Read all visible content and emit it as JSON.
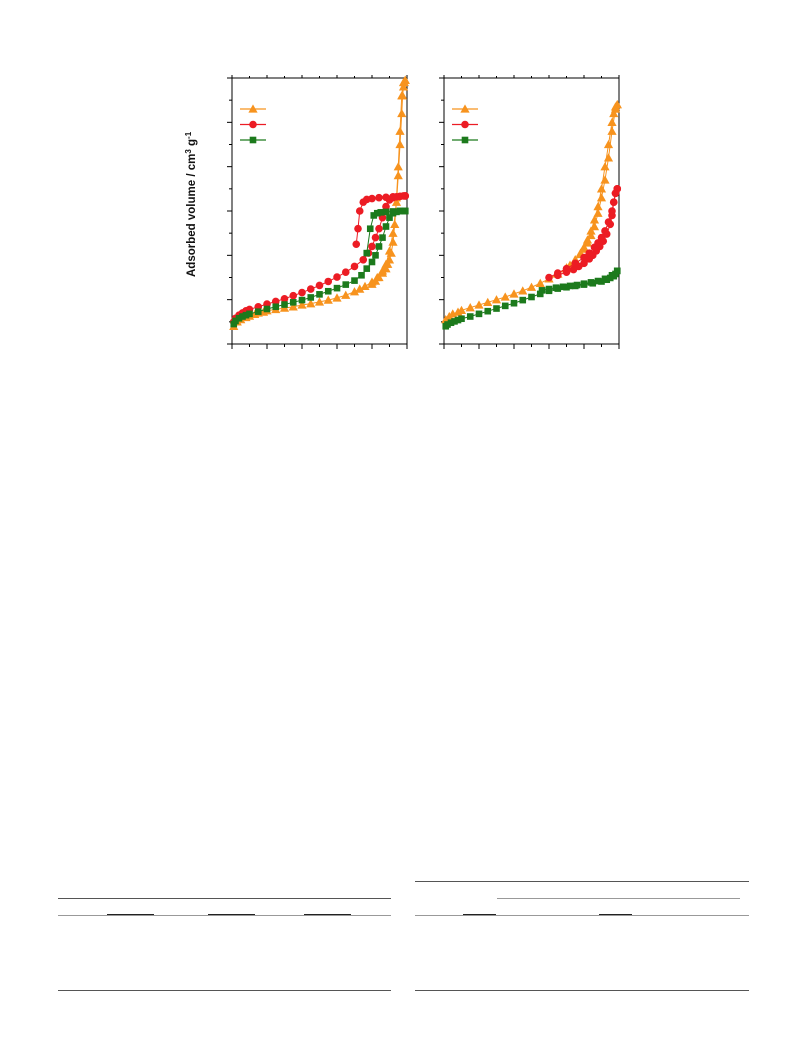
{
  "y_axis_label": "Adsorbed volume / cm",
  "y_axis_label_sup1": "3",
  "y_axis_label_mid": " g",
  "y_axis_label_sup2": "-1",
  "colors": {
    "orange": "#f7931e",
    "red": "#ec1c24",
    "green": "#1c7a1c",
    "axis": "#000000"
  },
  "chart_data": [
    {
      "type": "scatter",
      "title": "",
      "xlabel": "",
      "ylabel": "Adsorbed volume / cm3 g-1",
      "xlim": [
        0,
        1
      ],
      "ylim": [
        0,
        600
      ],
      "x_ticks_major": 5,
      "y_ticks_major": 6,
      "grid": false,
      "legend": "top-left",
      "series": [
        {
          "color": "orange",
          "marker": "triangle",
          "x": [
            0.01,
            0.03,
            0.05,
            0.08,
            0.1,
            0.13,
            0.15,
            0.18,
            0.2,
            0.25,
            0.3,
            0.35,
            0.4,
            0.45,
            0.5,
            0.55,
            0.6,
            0.65,
            0.7,
            0.73,
            0.76,
            0.8,
            0.83,
            0.86,
            0.88,
            0.9,
            0.92,
            0.94,
            0.95,
            0.96,
            0.97,
            0.975,
            0.98,
            0.985,
            0.99
          ],
          "y": [
            40,
            50,
            55,
            60,
            63,
            67,
            70,
            72,
            75,
            78,
            81,
            84,
            88,
            91,
            95,
            99,
            104,
            110,
            118,
            124,
            130,
            140,
            150,
            165,
            180,
            210,
            250,
            320,
            380,
            450,
            520,
            560,
            580,
            590,
            595
          ],
          "desorption": {
            "x": [
              0.99,
              0.98,
              0.97,
              0.96,
              0.95,
              0.94,
              0.93,
              0.92,
              0.91,
              0.9,
              0.89,
              0.88,
              0.86,
              0.84,
              0.82,
              0.8
            ],
            "y": [
              595,
              590,
              560,
              480,
              400,
              330,
              270,
              230,
              205,
              190,
              180,
              170,
              160,
              150,
              142,
              135
            ]
          }
        },
        {
          "color": "red",
          "marker": "circle",
          "x": [
            0.01,
            0.02,
            0.04,
            0.06,
            0.08,
            0.1,
            0.15,
            0.2,
            0.25,
            0.3,
            0.35,
            0.4,
            0.45,
            0.5,
            0.55,
            0.6,
            0.65,
            0.7,
            0.75,
            0.78,
            0.8,
            0.82,
            0.84,
            0.86,
            0.88,
            0.9,
            0.92,
            0.94,
            0.96,
            0.98,
            0.99
          ],
          "y": [
            50,
            58,
            65,
            70,
            75,
            78,
            84,
            90,
            96,
            102,
            109,
            116,
            124,
            132,
            141,
            151,
            162,
            175,
            190,
            205,
            220,
            240,
            260,
            285,
            310,
            325,
            330,
            332,
            333,
            334,
            334
          ],
          "desorption": {
            "x": [
              0.99,
              0.96,
              0.92,
              0.88,
              0.84,
              0.8,
              0.77,
              0.75,
              0.73,
              0.72,
              0.71
            ],
            "y": [
              334,
              333,
              332,
              331,
              330,
              328,
              326,
              320,
              300,
              260,
              225
            ]
          }
        },
        {
          "color": "green",
          "marker": "square",
          "x": [
            0.01,
            0.02,
            0.04,
            0.06,
            0.08,
            0.1,
            0.15,
            0.2,
            0.25,
            0.3,
            0.35,
            0.4,
            0.45,
            0.5,
            0.55,
            0.6,
            0.65,
            0.7,
            0.74,
            0.77,
            0.8,
            0.82,
            0.84,
            0.86,
            0.88,
            0.9,
            0.92,
            0.94,
            0.96,
            0.98,
            0.99
          ],
          "y": [
            45,
            52,
            58,
            62,
            65,
            68,
            73,
            79,
            84,
            89,
            94,
            99,
            105,
            112,
            119,
            126,
            134,
            143,
            155,
            170,
            185,
            200,
            220,
            240,
            265,
            285,
            295,
            298,
            300,
            300,
            300
          ],
          "desorption": {
            "x": [
              0.99,
              0.96,
              0.92,
              0.88,
              0.85,
              0.83,
              0.81,
              0.79,
              0.77
            ],
            "y": [
              300,
              300,
              299,
              298,
              297,
              295,
              290,
              260,
              205
            ]
          }
        }
      ]
    },
    {
      "type": "scatter",
      "title": "",
      "xlabel": "",
      "ylabel": "",
      "xlim": [
        0,
        1
      ],
      "ylim": [
        0,
        600
      ],
      "x_ticks_major": 5,
      "y_ticks_major": 6,
      "grid": false,
      "legend": "top-left",
      "series": [
        {
          "color": "orange",
          "marker": "triangle",
          "x": [
            0.01,
            0.03,
            0.05,
            0.08,
            0.1,
            0.15,
            0.2,
            0.25,
            0.3,
            0.35,
            0.4,
            0.45,
            0.5,
            0.55,
            0.6,
            0.65,
            0.7,
            0.75,
            0.78,
            0.8,
            0.82,
            0.84,
            0.86,
            0.88,
            0.9,
            0.92,
            0.94,
            0.96,
            0.97,
            0.98,
            0.99
          ],
          "y": [
            55,
            62,
            68,
            72,
            76,
            82,
            88,
            94,
            100,
            106,
            113,
            120,
            128,
            137,
            147,
            158,
            172,
            190,
            205,
            218,
            235,
            255,
            280,
            310,
            350,
            400,
            450,
            500,
            520,
            535,
            540
          ],
          "desorption": {
            "x": [
              0.99,
              0.98,
              0.96,
              0.94,
              0.92,
              0.9,
              0.88,
              0.86,
              0.84,
              0.82,
              0.8,
              0.78,
              0.75,
              0.72,
              0.7,
              0.65
            ],
            "y": [
              540,
              530,
              480,
              420,
              370,
              330,
              295,
              265,
              245,
              228,
              214,
              202,
              190,
              178,
              170,
              158
            ]
          }
        },
        {
          "color": "red",
          "marker": "circle",
          "x": [
            0.6,
            0.65,
            0.7,
            0.75,
            0.8,
            0.83,
            0.86,
            0.88,
            0.9,
            0.92,
            0.94,
            0.96,
            0.97,
            0.98,
            0.99
          ],
          "y": [
            150,
            160,
            170,
            182,
            195,
            205,
            218,
            228,
            240,
            255,
            275,
            300,
            320,
            340,
            350
          ],
          "desorption": {
            "x": [
              0.99,
              0.98,
              0.97,
              0.96,
              0.95,
              0.93,
              0.91,
              0.89,
              0.87,
              0.85,
              0.83,
              0.8,
              0.77,
              0.74,
              0.7,
              0.65
            ],
            "y": [
              350,
              340,
              320,
              290,
              270,
              248,
              232,
              220,
              210,
              200,
              192,
              182,
              175,
              168,
              162,
              155
            ]
          }
        },
        {
          "color": "green",
          "marker": "square",
          "x": [
            0.01,
            0.02,
            0.04,
            0.06,
            0.08,
            0.1,
            0.15,
            0.2,
            0.25,
            0.3,
            0.35,
            0.4,
            0.45,
            0.5,
            0.55,
            0.6,
            0.65,
            0.7,
            0.75,
            0.8,
            0.85,
            0.9,
            0.93,
            0.95,
            0.97,
            0.98,
            0.99
          ],
          "y": [
            40,
            44,
            48,
            51,
            54,
            57,
            62,
            68,
            74,
            80,
            86,
            92,
            99,
            106,
            113,
            120,
            125,
            128,
            131,
            134,
            137,
            141,
            145,
            149,
            153,
            158,
            165
          ],
          "desorption": {
            "x": [
              0.99,
              0.96,
              0.92,
              0.88,
              0.84,
              0.8,
              0.76,
              0.72,
              0.68,
              0.64,
              0.6,
              0.56
            ],
            "y": [
              165,
              155,
              147,
              142,
              139,
              136,
              133,
              131,
              129,
              127,
              124,
              121
            ]
          }
        }
      ]
    }
  ]
}
